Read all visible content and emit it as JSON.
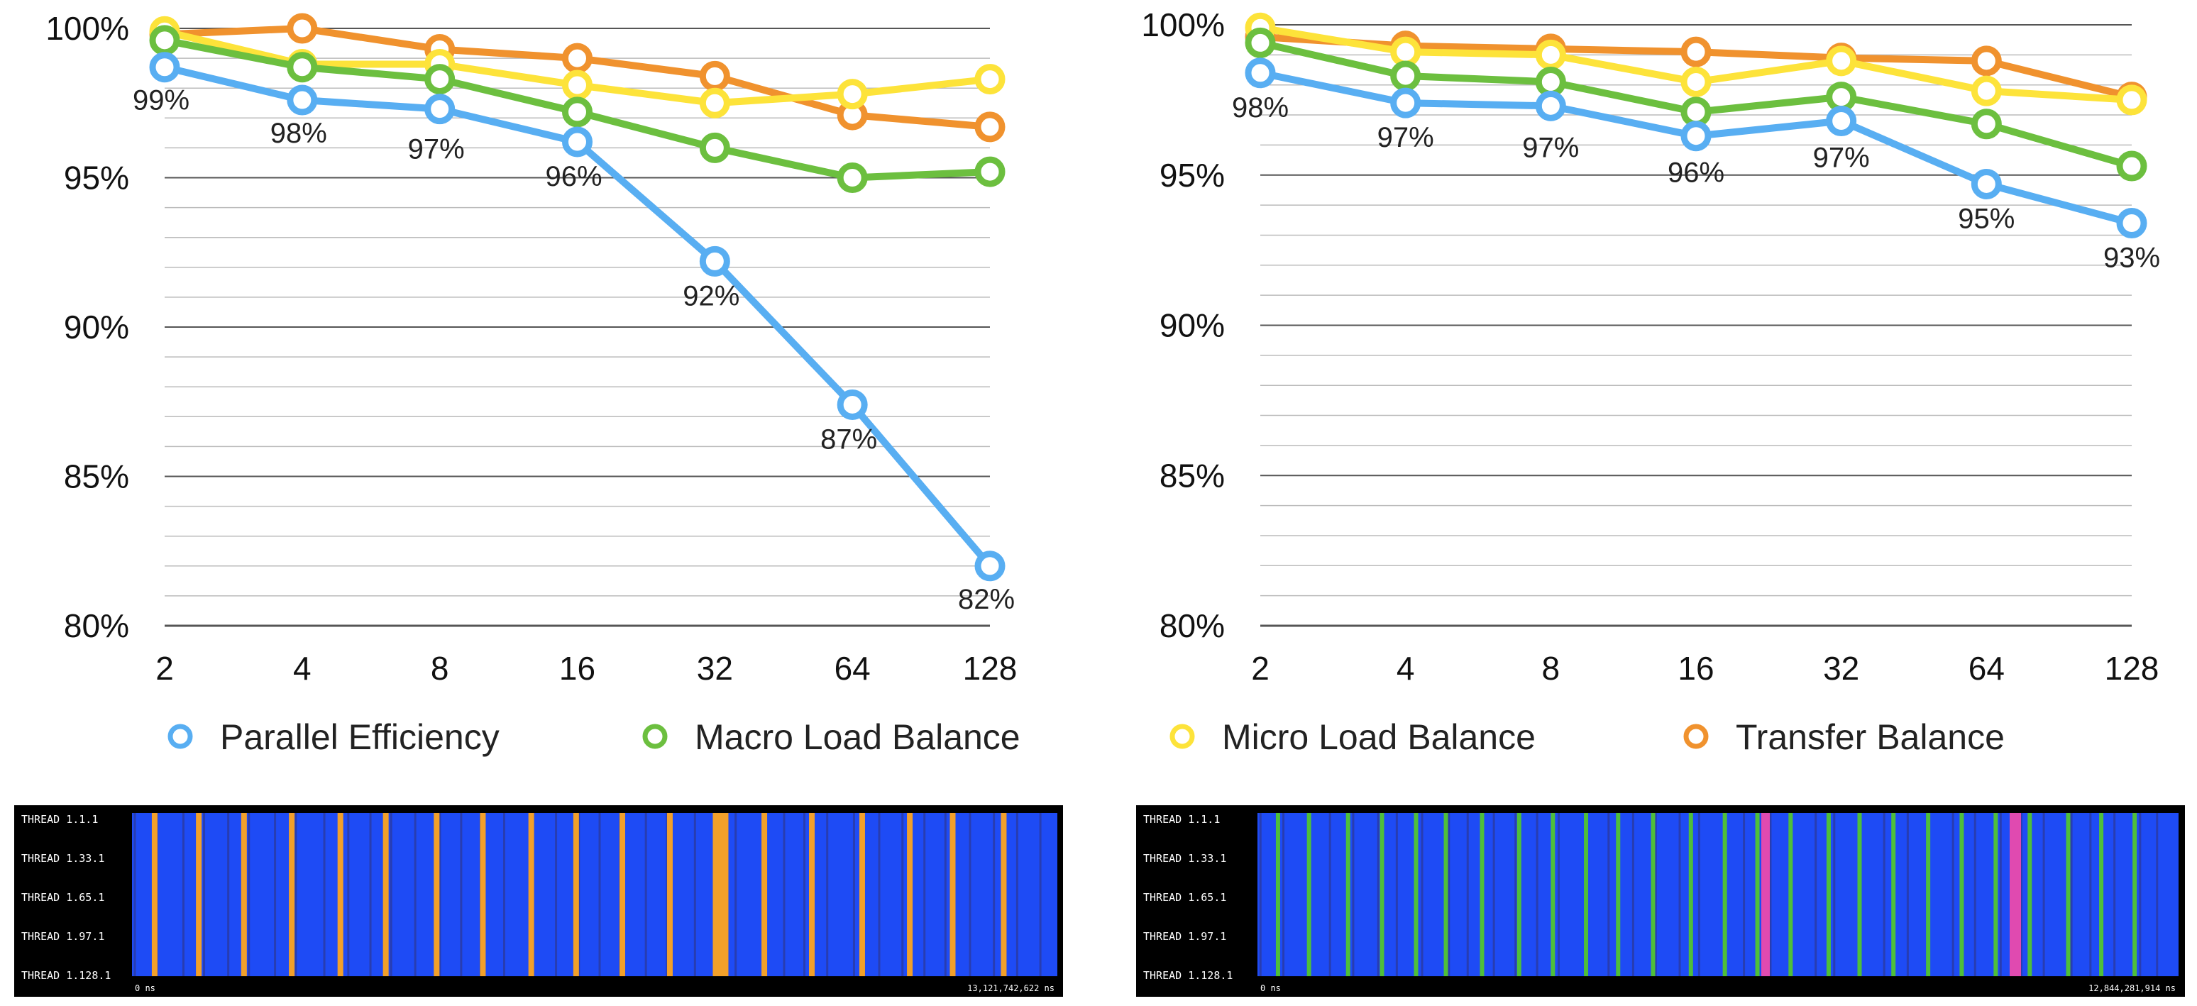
{
  "chart_data": [
    {
      "type": "line",
      "categories": [
        "2",
        "4",
        "8",
        "16",
        "32",
        "64",
        "128"
      ],
      "ylim": [
        80,
        100
      ],
      "yticks": [
        "80%",
        "85%",
        "90%",
        "95%",
        "100%"
      ],
      "grid": true,
      "series": [
        {
          "name": "Parallel Efficiency",
          "color": "#58aef2",
          "values": [
            98.7,
            97.6,
            97.3,
            96.2,
            92.2,
            87.4,
            82.0
          ],
          "labels": [
            "99%",
            "98%",
            "97%",
            "96%",
            "92%",
            "87%",
            "82%"
          ]
        },
        {
          "name": "Macro Load Balance",
          "color": "#6cbf3f",
          "values": [
            99.6,
            98.7,
            98.3,
            97.2,
            96.0,
            95.0,
            95.2
          ]
        },
        {
          "name": "Micro Load Balance",
          "color": "#fde33a",
          "values": [
            99.9,
            98.8,
            98.8,
            98.1,
            97.5,
            97.8,
            98.3
          ]
        },
        {
          "name": "Transfer Balance",
          "color": "#f0922e",
          "values": [
            99.8,
            100.0,
            99.3,
            99.0,
            98.4,
            97.1,
            96.7
          ]
        }
      ]
    },
    {
      "type": "line",
      "categories": [
        "2",
        "4",
        "8",
        "16",
        "32",
        "64",
        "128"
      ],
      "ylim": [
        80,
        100
      ],
      "yticks": [
        "80%",
        "85%",
        "90%",
        "95%",
        "100%"
      ],
      "grid": true,
      "series": [
        {
          "name": "Parallel Efficiency",
          "color": "#58aef2",
          "values": [
            98.4,
            97.4,
            97.3,
            96.3,
            96.8,
            94.7,
            93.4
          ],
          "labels": [
            "98%",
            "97%",
            "97%",
            "96%",
            "97%",
            "95%",
            "93%"
          ]
        },
        {
          "name": "Macro Load Balance",
          "color": "#6cbf3f",
          "values": [
            99.4,
            98.3,
            98.1,
            97.1,
            97.6,
            96.7,
            95.3
          ]
        },
        {
          "name": "Micro Load Balance",
          "color": "#fde33a",
          "values": [
            99.9,
            99.1,
            99.0,
            98.1,
            98.8,
            97.8,
            97.5
          ]
        },
        {
          "name": "Transfer Balance",
          "color": "#f0922e",
          "values": [
            99.6,
            99.3,
            99.2,
            99.1,
            98.9,
            98.8,
            97.6
          ]
        }
      ]
    }
  ],
  "legend": [
    {
      "label": "Parallel Efficiency",
      "color": "#58aef2"
    },
    {
      "label": "Macro Load Balance",
      "color": "#6cbf3f"
    },
    {
      "label": "Micro Load Balance",
      "color": "#fde33a"
    },
    {
      "label": "Transfer Balance",
      "color": "#f0922e"
    }
  ],
  "traces": [
    {
      "thread_labels": [
        "THREAD 1.1.1",
        "THREAD 1.33.1",
        "THREAD 1.65.1",
        "THREAD 1.97.1",
        "THREAD 1.128.1"
      ],
      "start_label": "0 ns",
      "end_label": "13,121,742,622 ns",
      "background": "#1e4bf5",
      "stripe_color": "#f2a02a"
    },
    {
      "thread_labels": [
        "THREAD 1.1.1",
        "THREAD 1.33.1",
        "THREAD 1.65.1",
        "THREAD 1.97.1",
        "THREAD 1.128.1"
      ],
      "start_label": "0 ns",
      "end_label": "12,844,281,914 ns",
      "background": "#1e4bf5",
      "stripe_color": "#4fbf3a",
      "accent_color": "#e04ab0"
    }
  ]
}
